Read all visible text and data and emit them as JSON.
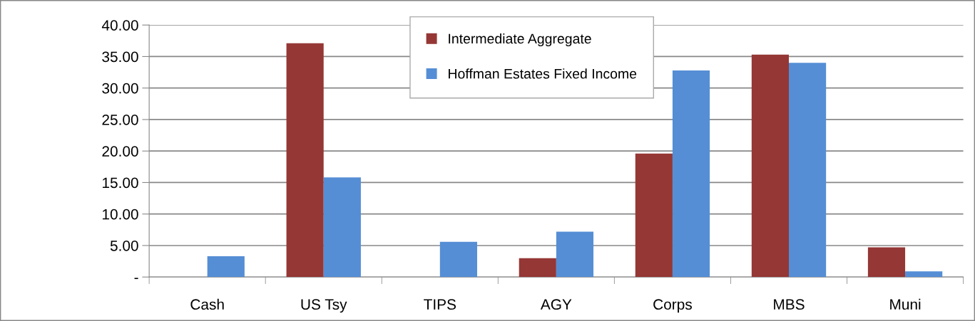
{
  "chart_data": {
    "type": "bar",
    "categories": [
      "Cash",
      "US Tsy",
      "TIPS",
      "AGY",
      "Corps",
      "MBS",
      "Muni"
    ],
    "series": [
      {
        "name": "Intermediate Aggregate",
        "color": "#953735",
        "values": [
          0,
          37.1,
          0,
          3.0,
          19.6,
          35.3,
          4.7
        ]
      },
      {
        "name": "Hoffman Estates Fixed Income",
        "color": "#558ed5",
        "values": [
          3.3,
          15.8,
          5.6,
          7.2,
          32.8,
          34.0,
          0.9
        ]
      }
    ],
    "ylim": [
      0,
      40
    ],
    "yticks": [
      {
        "value": 0,
        "label": "-"
      },
      {
        "value": 5,
        "label": "5.00"
      },
      {
        "value": 10,
        "label": "10.00"
      },
      {
        "value": 15,
        "label": "15.00"
      },
      {
        "value": 20,
        "label": "20.00"
      },
      {
        "value": 25,
        "label": "25.00"
      },
      {
        "value": 30,
        "label": "30.00"
      },
      {
        "value": 35,
        "label": "35.00"
      },
      {
        "value": 40,
        "label": "40.00"
      }
    ],
    "grid": "y",
    "legend": "top"
  }
}
